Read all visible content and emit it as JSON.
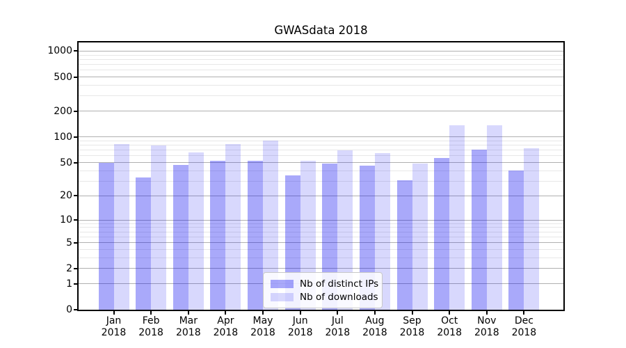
{
  "title": "GWASdata 2018",
  "chart_data": {
    "type": "bar",
    "scale": "log1p",
    "title": "GWASdata 2018",
    "xlabel": "",
    "ylabel": "",
    "categories": [
      "Jan 2018",
      "Feb 2018",
      "Mar 2018",
      "Apr 2018",
      "May 2018",
      "Jun 2018",
      "Jul 2018",
      "Aug 2018",
      "Sep 2018",
      "Oct 2018",
      "Nov 2018",
      "Dec 2018"
    ],
    "series": [
      {
        "name": "Nb of distinct IPs",
        "color": "rgba(10,10,240,0.35)",
        "values": [
          50,
          33,
          47,
          52,
          52,
          35,
          49,
          46,
          31,
          57,
          71,
          40
        ]
      },
      {
        "name": "Nb of downloads",
        "color": "rgba(10,10,240,0.16)",
        "values": [
          83,
          80,
          66,
          83,
          90,
          52,
          70,
          65,
          49,
          137,
          137,
          74
        ]
      }
    ],
    "yticks": [
      0,
      1,
      2,
      5,
      10,
      20,
      50,
      100,
      200,
      500,
      1000
    ],
    "minor_gridlines": [
      3,
      4,
      6,
      7,
      8,
      9,
      30,
      40,
      60,
      70,
      80,
      90,
      300,
      400,
      600,
      700,
      800,
      900
    ],
    "ylim": [
      0,
      1257
    ],
    "grid": "on",
    "legend_position": "lower center"
  }
}
